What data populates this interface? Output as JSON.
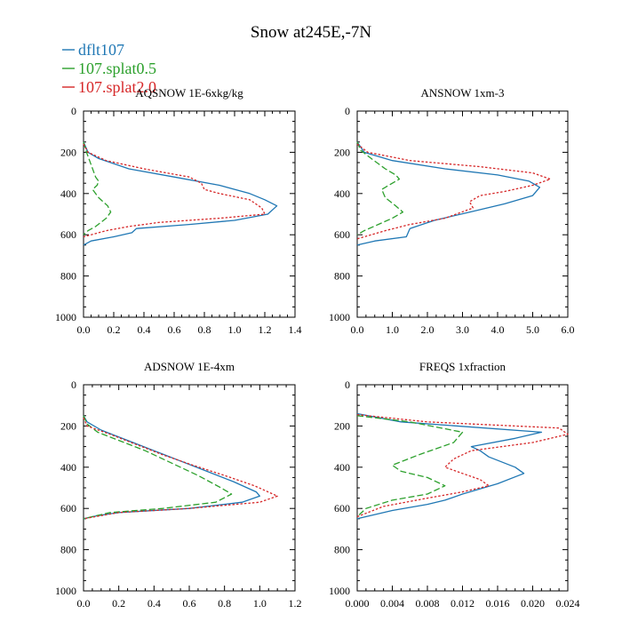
{
  "title": "Snow at245E,-7N",
  "legend": {
    "placement": "top-left",
    "entries": [
      {
        "name": "dflt107",
        "color": "#1f77b4",
        "dash": "solid"
      },
      {
        "name": "107.splat0.5",
        "color": "#2ca02c",
        "dash": "dashed"
      },
      {
        "name": "107.splat2.0",
        "color": "#d62728",
        "dash": "dotted"
      }
    ]
  },
  "chart_data": [
    {
      "type": "line",
      "title": "AQSNOW  1E-6xkg/kg",
      "xlim": [
        0,
        1.4
      ],
      "ylim": [
        0,
        1000
      ],
      "y_inverted": true,
      "xticks": [
        0,
        0.2,
        0.4,
        0.6,
        0.8,
        1.0,
        1.2,
        1.4
      ],
      "xticklabels": [
        "0.0",
        "0.2",
        "0.4",
        "0.6",
        "0.8",
        "1.0",
        "1.2",
        "1.4"
      ],
      "yticks": [
        0,
        200,
        400,
        600,
        800,
        1000
      ],
      "yticklabels": [
        "0",
        "200",
        "400",
        "600",
        "800",
        "1000"
      ],
      "series": [
        {
          "name": "dflt107",
          "points": [
            [
              0,
              150
            ],
            [
              0.03,
              200
            ],
            [
              0.1,
              230
            ],
            [
              0.3,
              280
            ],
            [
              0.6,
              320
            ],
            [
              0.9,
              360
            ],
            [
              1.1,
              400
            ],
            [
              1.2,
              430
            ],
            [
              1.28,
              460
            ],
            [
              1.22,
              500
            ],
            [
              1.0,
              530
            ],
            [
              0.7,
              550
            ],
            [
              0.35,
              570
            ],
            [
              0.32,
              590
            ],
            [
              0.2,
              610
            ],
            [
              0.05,
              630
            ],
            [
              0,
              650
            ]
          ]
        },
        {
          "name": "107.splat0.5",
          "points": [
            [
              0,
              150
            ],
            [
              0.02,
              200
            ],
            [
              0.05,
              260
            ],
            [
              0.08,
              320
            ],
            [
              0.1,
              340
            ],
            [
              0.09,
              360
            ],
            [
              0.06,
              380
            ],
            [
              0.1,
              420
            ],
            [
              0.16,
              460
            ],
            [
              0.18,
              490
            ],
            [
              0.15,
              520
            ],
            [
              0.08,
              560
            ],
            [
              0.03,
              580
            ],
            [
              0,
              600
            ]
          ]
        },
        {
          "name": "107.splat2.0",
          "points": [
            [
              0,
              160
            ],
            [
              0.03,
              200
            ],
            [
              0.15,
              240
            ],
            [
              0.4,
              280
            ],
            [
              0.7,
              320
            ],
            [
              0.78,
              350
            ],
            [
              0.8,
              380
            ],
            [
              0.9,
              400
            ],
            [
              1.1,
              430
            ],
            [
              1.18,
              470
            ],
            [
              1.2,
              500
            ],
            [
              0.9,
              520
            ],
            [
              0.5,
              540
            ],
            [
              0.3,
              560
            ],
            [
              0.15,
              580
            ],
            [
              0.05,
              600
            ],
            [
              0,
              610
            ]
          ]
        }
      ]
    },
    {
      "type": "line",
      "title": "ANSNOW  1xm-3",
      "xlim": [
        0,
        6.0
      ],
      "ylim": [
        0,
        1000
      ],
      "y_inverted": true,
      "xticks": [
        0,
        1,
        2,
        3,
        4,
        5,
        6
      ],
      "xticklabels": [
        "0.0",
        "1.0",
        "2.0",
        "3.0",
        "4.0",
        "5.0",
        "6.0"
      ],
      "yticks": [
        0,
        200,
        400,
        600,
        800,
        1000
      ],
      "yticklabels": [
        "0",
        "200",
        "400",
        "600",
        "800",
        "1000"
      ],
      "series": [
        {
          "name": "dflt107",
          "points": [
            [
              0,
              150
            ],
            [
              0.2,
              200
            ],
            [
              1.0,
              240
            ],
            [
              2.5,
              280
            ],
            [
              4.0,
              310
            ],
            [
              4.9,
              340
            ],
            [
              5.2,
              370
            ],
            [
              5.0,
              410
            ],
            [
              4.2,
              450
            ],
            [
              3.2,
              490
            ],
            [
              2.2,
              530
            ],
            [
              1.5,
              570
            ],
            [
              1.4,
              610
            ],
            [
              0.5,
              630
            ],
            [
              0,
              650
            ]
          ]
        },
        {
          "name": "107.splat0.5",
          "points": [
            [
              0,
              150
            ],
            [
              0.1,
              190
            ],
            [
              0.4,
              230
            ],
            [
              0.8,
              280
            ],
            [
              1.1,
              310
            ],
            [
              1.2,
              330
            ],
            [
              1.0,
              350
            ],
            [
              0.7,
              380
            ],
            [
              0.8,
              420
            ],
            [
              1.1,
              460
            ],
            [
              1.3,
              490
            ],
            [
              1.0,
              520
            ],
            [
              0.6,
              550
            ],
            [
              0.2,
              580
            ],
            [
              0,
              600
            ]
          ]
        },
        {
          "name": "107.splat2.0",
          "points": [
            [
              0,
              160
            ],
            [
              0.3,
              200
            ],
            [
              1.5,
              240
            ],
            [
              3.5,
              270
            ],
            [
              5.0,
              300
            ],
            [
              5.5,
              330
            ],
            [
              5.0,
              360
            ],
            [
              4.2,
              390
            ],
            [
              3.5,
              410
            ],
            [
              3.2,
              440
            ],
            [
              3.3,
              470
            ],
            [
              2.5,
              520
            ],
            [
              1.5,
              550
            ],
            [
              0.8,
              580
            ],
            [
              0.2,
              610
            ],
            [
              0,
              620
            ]
          ]
        }
      ]
    },
    {
      "type": "line",
      "title": "ADSNOW  1E-4xm",
      "xlim": [
        0,
        1.2
      ],
      "ylim": [
        0,
        1000
      ],
      "y_inverted": true,
      "xticks": [
        0,
        0.2,
        0.4,
        0.6,
        0.8,
        1.0,
        1.2
      ],
      "xticklabels": [
        "0.0",
        "0.2",
        "0.4",
        "0.6",
        "0.8",
        "1.0",
        "1.2"
      ],
      "yticks": [
        0,
        200,
        400,
        600,
        800,
        1000
      ],
      "yticklabels": [
        "0",
        "200",
        "400",
        "600",
        "800",
        "1000"
      ],
      "series": [
        {
          "name": "dflt107",
          "points": [
            [
              0,
              150
            ],
            [
              0.02,
              180
            ],
            [
              0.1,
              220
            ],
            [
              0.25,
              270
            ],
            [
              0.4,
              320
            ],
            [
              0.55,
              370
            ],
            [
              0.7,
              420
            ],
            [
              0.85,
              470
            ],
            [
              0.98,
              520
            ],
            [
              1.0,
              540
            ],
            [
              0.9,
              570
            ],
            [
              0.6,
              600
            ],
            [
              0.2,
              620
            ],
            [
              0.08,
              635
            ],
            [
              0,
              650
            ]
          ]
        },
        {
          "name": "107.splat0.5",
          "points": [
            [
              0,
              150
            ],
            [
              0.02,
              190
            ],
            [
              0.08,
              230
            ],
            [
              0.2,
              270
            ],
            [
              0.35,
              320
            ],
            [
              0.5,
              380
            ],
            [
              0.65,
              440
            ],
            [
              0.78,
              500
            ],
            [
              0.84,
              530
            ],
            [
              0.75,
              570
            ],
            [
              0.45,
              600
            ],
            [
              0.15,
              620
            ],
            [
              0,
              650
            ]
          ]
        },
        {
          "name": "107.splat2.0",
          "points": [
            [
              0,
              160
            ],
            [
              0.02,
              200
            ],
            [
              0.15,
              240
            ],
            [
              0.3,
              290
            ],
            [
              0.45,
              340
            ],
            [
              0.62,
              390
            ],
            [
              0.8,
              440
            ],
            [
              0.97,
              490
            ],
            [
              1.1,
              540
            ],
            [
              1.0,
              570
            ],
            [
              0.6,
              600
            ],
            [
              0.2,
              620
            ],
            [
              0,
              650
            ]
          ]
        }
      ]
    },
    {
      "type": "line",
      "title": "FREQS  1xfraction",
      "xlim": [
        0,
        0.024
      ],
      "ylim": [
        0,
        1000
      ],
      "y_inverted": true,
      "xticks": [
        0,
        0.004,
        0.008,
        0.012,
        0.016,
        0.02,
        0.024
      ],
      "xticklabels": [
        "0.000",
        "0.004",
        "0.008",
        "0.012",
        "0.016",
        "0.020",
        "0.024"
      ],
      "yticks": [
        0,
        200,
        400,
        600,
        800,
        1000
      ],
      "yticklabels": [
        "0",
        "200",
        "400",
        "600",
        "800",
        "1000"
      ],
      "series": [
        {
          "name": "dflt107",
          "points": [
            [
              0,
              140
            ],
            [
              0.005,
              180
            ],
            [
              0.021,
              230
            ],
            [
              0.018,
              260
            ],
            [
              0.013,
              300
            ],
            [
              0.014,
              320
            ],
            [
              0.015,
              350
            ],
            [
              0.018,
              400
            ],
            [
              0.019,
              430
            ],
            [
              0.016,
              480
            ],
            [
              0.012,
              530
            ],
            [
              0.01,
              560
            ],
            [
              0.008,
              580
            ],
            [
              0.004,
              610
            ],
            [
              0,
              650
            ]
          ]
        },
        {
          "name": "107.splat0.5",
          "points": [
            [
              0,
              150
            ],
            [
              0.006,
              180
            ],
            [
              0.012,
              230
            ],
            [
              0.011,
              280
            ],
            [
              0.007,
              340
            ],
            [
              0.004,
              390
            ],
            [
              0.005,
              420
            ],
            [
              0.008,
              450
            ],
            [
              0.01,
              490
            ],
            [
              0.008,
              530
            ],
            [
              0.004,
              560
            ],
            [
              0.001,
              600
            ],
            [
              0,
              640
            ]
          ]
        },
        {
          "name": "107.splat2.0",
          "points": [
            [
              0,
              145
            ],
            [
              0.008,
              180
            ],
            [
              0.023,
              210
            ],
            [
              0.024,
              240
            ],
            [
              0.02,
              280
            ],
            [
              0.013,
              320
            ],
            [
              0.011,
              360
            ],
            [
              0.01,
              400
            ],
            [
              0.012,
              430
            ],
            [
              0.014,
              460
            ],
            [
              0.015,
              490
            ],
            [
              0.012,
              520
            ],
            [
              0.008,
              550
            ],
            [
              0.003,
              590
            ],
            [
              0,
              640
            ]
          ]
        }
      ]
    }
  ]
}
